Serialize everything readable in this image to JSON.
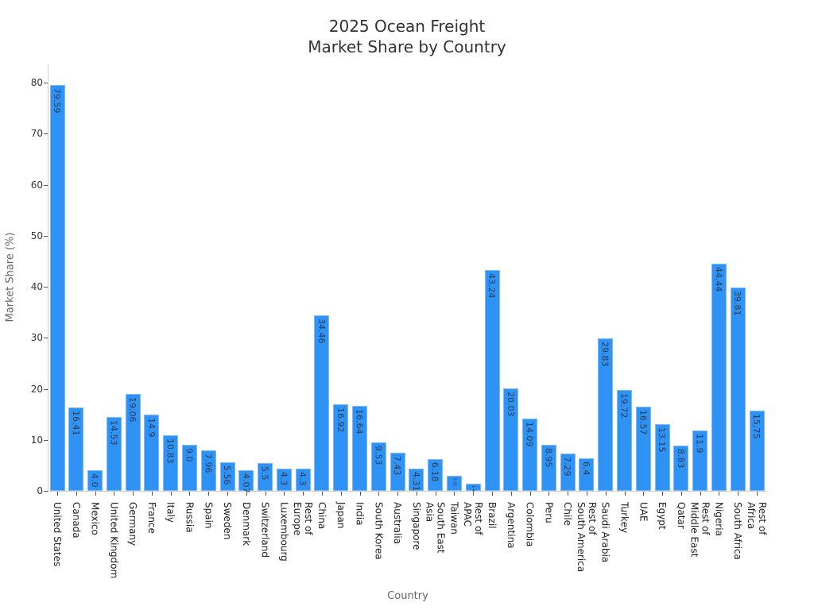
{
  "chart_data": {
    "type": "bar",
    "title": "2025 Ocean Freight\nMarket Share by Country",
    "title_lines": [
      "2025 Ocean Freight",
      "Market Share by Country"
    ],
    "xlabel": "Country",
    "ylabel": "Market Share (%)",
    "ylim": [
      0,
      83
    ],
    "yticks": [
      0,
      10,
      20,
      30,
      40,
      50,
      60,
      70,
      80
    ],
    "grid": false,
    "bar_color": "#2f93f5",
    "categories": [
      "United States",
      "Canada",
      "Mexico",
      "United Kingdom",
      "Germany",
      "France",
      "Italy",
      "Russia",
      "Spain",
      "Sweden",
      "Denmark",
      "Switzerland",
      "Luxembourg",
      "Rest of\nEurope",
      "China",
      "Japan",
      "India",
      "South Korea",
      "Australia",
      "Singapore",
      "South East\nAsia",
      "Taiwan",
      "Rest of\nAPAC",
      "Brazil",
      "Argentina",
      "Colombia",
      "Peru",
      "Chile",
      "Rest of\nSouth America",
      "Saudi Arabia",
      "Turkey",
      "UAE",
      "Egypt",
      "Qatar",
      "Rest of\nMiddle East",
      "Nigeria",
      "South Africa",
      "Rest of\nAfrica"
    ],
    "values": [
      79.59,
      16.41,
      4.0,
      14.53,
      19.06,
      14.9,
      10.83,
      9.0,
      7.96,
      5.56,
      4.07,
      5.5,
      4.3,
      4.3,
      34.46,
      16.92,
      16.64,
      9.53,
      7.43,
      4.31,
      6.18,
      3.01,
      1.4,
      43.24,
      20.03,
      14.09,
      8.95,
      7.29,
      6.4,
      29.83,
      19.72,
      16.57,
      13.15,
      8.83,
      11.9,
      44.44,
      39.81,
      15.75
    ],
    "labels": [
      "79.59",
      "16.41",
      "4.0",
      "14.53",
      "19.06",
      "14.9",
      "10.83",
      "9.0",
      "7.96",
      "5.56",
      "4.07",
      "5.5",
      "4.3",
      "4.3",
      "34.46",
      "16.92",
      "16.64",
      "9.53",
      "7.43",
      "4.31",
      "6.18",
      "3.01",
      "1.4",
      "43.24",
      "20.03",
      "14.09",
      "8.95",
      "7.29",
      "6.4",
      "29.83",
      "19.72",
      "16.57",
      "13.15",
      "8.83",
      "11.9",
      "44.44",
      "39.81",
      "15.75"
    ]
  }
}
